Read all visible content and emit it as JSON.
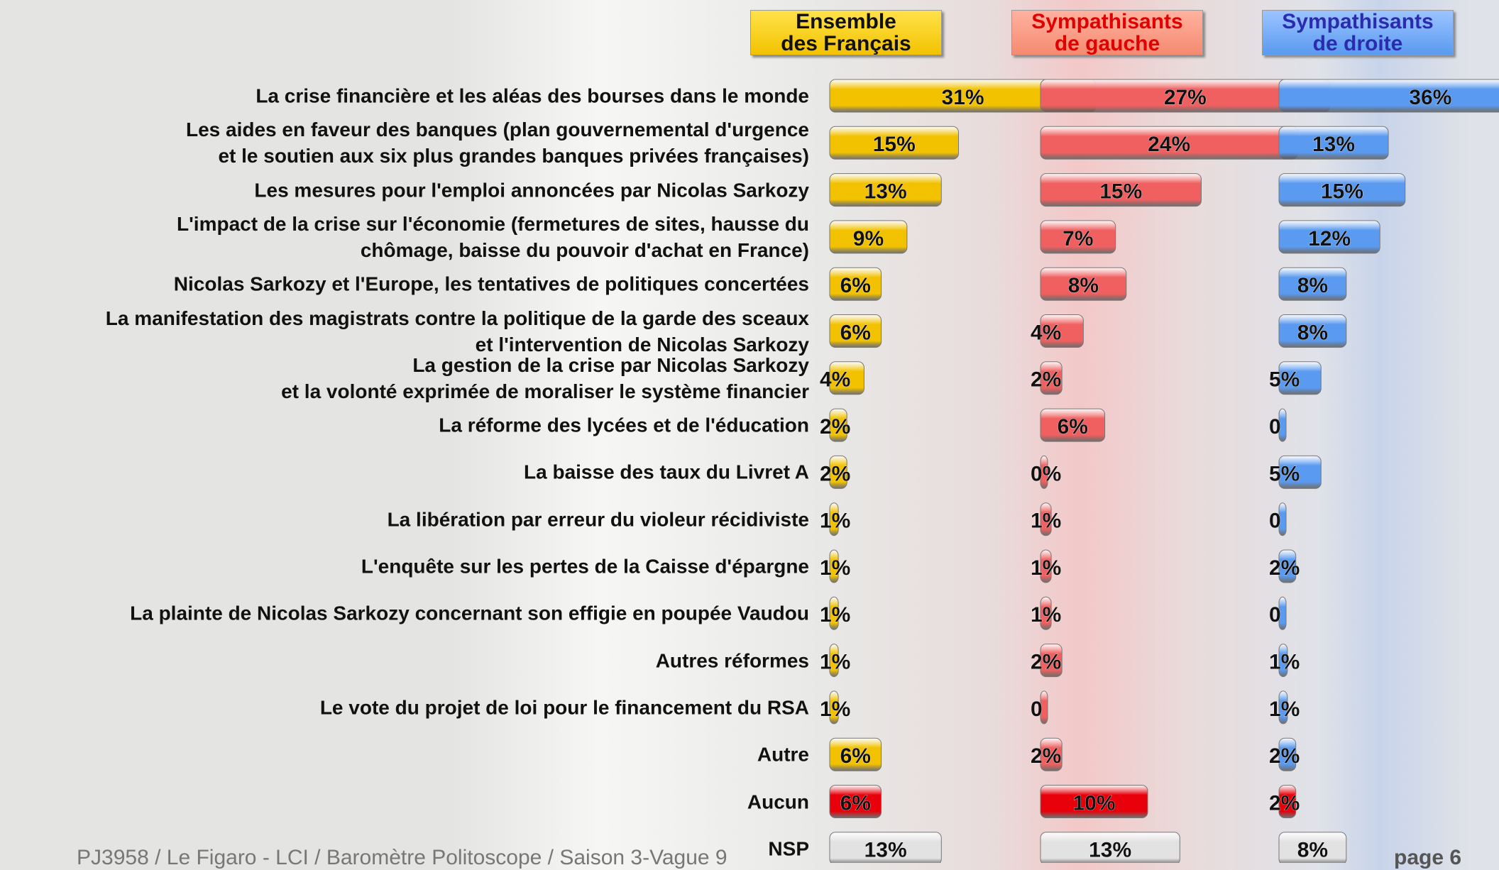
{
  "chart_data": {
    "type": "bar",
    "categories": [
      "La crise financière et les aléas des bourses dans le monde",
      "Les aides en faveur des banques (plan gouvernemental d'urgence\net le soutien aux six plus grandes banques privées françaises)",
      "Les mesures pour l'emploi annoncées par Nicolas Sarkozy",
      "L'impact de la crise sur l'économie  (fermetures de sites, hausse du\nchômage, baisse du pouvoir d'achat en France)",
      "Nicolas Sarkozy et l'Europe, les tentatives de politiques concertées",
      "La manifestation des magistrats contre la politique de la garde des sceaux\net l'intervention de Nicolas Sarkozy",
      "La gestion de la crise par Nicolas Sarkozy\net la volonté exprimée de moraliser le système financier",
      "La réforme des lycées et de l'éducation",
      "La baisse des taux du Livret A",
      "La libération par erreur du violeur récidiviste",
      "L'enquête sur les pertes de la Caisse d'épargne",
      "La plainte de Nicolas Sarkozy concernant son effigie en poupée Vaudou",
      "Autres réformes",
      "Le vote du projet de loi pour le financement du RSA",
      "Autre",
      "Aucun",
      "NSP"
    ],
    "series": [
      {
        "name": "Ensemble\ndes Français",
        "color": "#f2c200",
        "colors": [
          "#f2c200",
          "#f2c200",
          "#f2c200",
          "#f2c200",
          "#f2c200",
          "#f2c200",
          "#f2c200",
          "#f2c200",
          "#f2c200",
          "#f2c200",
          "#f2c200",
          "#f2c200",
          "#f2c200",
          "#f2c200",
          "#f2c200",
          "#e8000a",
          "#e2e2e2"
        ],
        "values": [
          31,
          15,
          13,
          9,
          6,
          6,
          4,
          2,
          2,
          1,
          1,
          1,
          1,
          1,
          6,
          6,
          13
        ],
        "value_labels": [
          "31%",
          "15%",
          "13%",
          "9%",
          "6%",
          "6%",
          "4%",
          "2%",
          "2%",
          "1%",
          "1%",
          "1%",
          "1%",
          "1%",
          "6%",
          "6%",
          "13%"
        ]
      },
      {
        "name": "Sympathisants\nde gauche",
        "color": "#f06060",
        "colors": [
          "#f06060",
          "#f06060",
          "#f06060",
          "#f06060",
          "#f06060",
          "#f06060",
          "#f06060",
          "#f06060",
          "#f06060",
          "#f06060",
          "#f06060",
          "#f06060",
          "#f06060",
          "#f06060",
          "#f06060",
          "#e8000a",
          "#e2e2e2"
        ],
        "values": [
          27,
          24,
          15,
          7,
          8,
          4,
          2,
          6,
          0,
          1,
          1,
          1,
          2,
          0,
          2,
          10,
          13
        ],
        "value_labels": [
          "27%",
          "24%",
          "15%",
          "7%",
          "8%",
          "4%",
          "2%",
          "6%",
          "0%",
          "1%",
          "1%",
          "1%",
          "2%",
          "0",
          "2%",
          "10%",
          "13%"
        ]
      },
      {
        "name": "Sympathisants\nde droite",
        "color": "#5a9af0",
        "colors": [
          "#5a9af0",
          "#5a9af0",
          "#5a9af0",
          "#5a9af0",
          "#5a9af0",
          "#5a9af0",
          "#5a9af0",
          "#5a9af0",
          "#5a9af0",
          "#5a9af0",
          "#5a9af0",
          "#5a9af0",
          "#5a9af0",
          "#5a9af0",
          "#5a9af0",
          "#e8000a",
          "#e2e2e2"
        ],
        "values": [
          36,
          13,
          15,
          12,
          8,
          8,
          5,
          0,
          5,
          0,
          2,
          0,
          1,
          1,
          2,
          2,
          8
        ],
        "value_labels": [
          "36%",
          "13%",
          "15%",
          "12%",
          "8%",
          "8%",
          "5%",
          "0",
          "5%",
          "0",
          "2%",
          "0",
          "1%",
          "1%",
          "2%",
          "2%",
          "8%"
        ]
      }
    ]
  },
  "footer": "PJ3958 / Le Figaro - LCI / Baromètre Politoscope / Saison 3-Vague 9",
  "page": "page 6"
}
